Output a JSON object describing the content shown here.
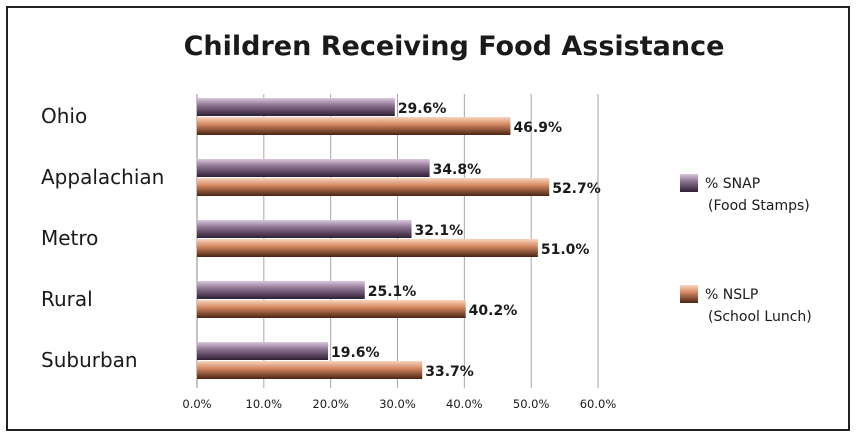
{
  "chart_data": {
    "type": "bar",
    "orientation": "horizontal",
    "title": "Children Receiving Food Assistance",
    "categories": [
      "Ohio",
      "Appalachian",
      "Metro",
      "Rural",
      "Suburban"
    ],
    "series": [
      {
        "name": "% SNAP (Food Stamps)",
        "legend_lines": [
          "% SNAP",
          "(Food Stamps)"
        ],
        "color": "#6e5474",
        "values": [
          29.6,
          34.8,
          32.1,
          25.1,
          19.6
        ],
        "labels": [
          "29.6%",
          "34.8%",
          "32.1%",
          "25.1%",
          "19.6%"
        ]
      },
      {
        "name": "% NSLP (School Lunch)",
        "legend_lines": [
          "% NSLP",
          "(School Lunch)"
        ],
        "color": "#c8764f",
        "values": [
          46.9,
          52.7,
          51.0,
          40.2,
          33.7
        ],
        "labels": [
          "46.9%",
          "52.7%",
          "51.0%",
          "40.2%",
          "33.7%"
        ]
      }
    ],
    "xlim": [
      0,
      60
    ],
    "xticks": [
      0,
      10,
      20,
      30,
      40,
      50,
      60
    ],
    "xtick_labels": [
      "0.0%",
      "10.0%",
      "20.0%",
      "30.0%",
      "40.0%",
      "50.0%",
      "60.0%"
    ],
    "grid": true,
    "legend_position": "right"
  }
}
